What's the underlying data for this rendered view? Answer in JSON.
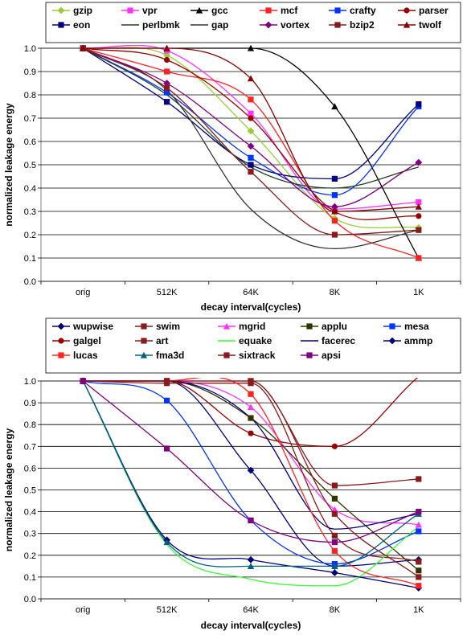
{
  "chart_data": [
    {
      "type": "line",
      "categories": [
        "orig",
        "512K",
        "64K",
        "8K",
        "1K"
      ],
      "xlabel": "decay interval(cycles)",
      "ylabel": "normalized leakage energy",
      "ylim": [
        0,
        1
      ],
      "yticks": [
        "0.0",
        "0.1",
        "0.2",
        "0.3",
        "0.4",
        "0.5",
        "0.6",
        "0.7",
        "0.8",
        "0.9",
        "1.0"
      ],
      "grid": "horizontal",
      "legend_position": "top",
      "series": [
        {
          "name": "gzip",
          "color": "#9ACD32",
          "marker": "diamond",
          "values": [
            1.0,
            0.97,
            0.645,
            0.27,
            0.23
          ]
        },
        {
          "name": "vpr",
          "color": "#FF33FF",
          "marker": "square",
          "values": [
            1.0,
            0.99,
            0.72,
            0.31,
            0.34
          ]
        },
        {
          "name": "gcc",
          "color": "#000000",
          "marker": "triangle",
          "values": [
            1.0,
            1.0,
            1.0,
            0.75,
            0.1
          ]
        },
        {
          "name": "mcf",
          "color": "#FF2222",
          "marker": "square",
          "values": [
            1.0,
            0.9,
            0.78,
            0.26,
            0.1
          ]
        },
        {
          "name": "crafty",
          "color": "#0033FF",
          "marker": "square",
          "values": [
            1.0,
            0.81,
            0.53,
            0.37,
            0.75
          ]
        },
        {
          "name": "parser",
          "color": "#990000",
          "marker": "circle",
          "values": [
            1.0,
            0.95,
            0.7,
            0.3,
            0.28
          ]
        },
        {
          "name": "eon",
          "color": "#000080",
          "marker": "square",
          "values": [
            1.0,
            0.77,
            0.5,
            0.44,
            0.76
          ]
        },
        {
          "name": "perlbmk",
          "color": "#204020",
          "marker": "none",
          "values": [
            1.0,
            0.8,
            0.49,
            0.4,
            0.49
          ]
        },
        {
          "name": "gap",
          "color": "#333333",
          "marker": "none",
          "values": [
            1.0,
            0.82,
            0.31,
            0.14,
            0.22
          ]
        },
        {
          "name": "vortex",
          "color": "#800080",
          "marker": "diamond",
          "values": [
            1.0,
            0.85,
            0.58,
            0.32,
            0.51
          ]
        },
        {
          "name": "bzip2",
          "color": "#8B1A1A",
          "marker": "square",
          "values": [
            1.0,
            0.83,
            0.47,
            0.2,
            0.22
          ]
        },
        {
          "name": "twolf",
          "color": "#8B0000",
          "marker": "triangle",
          "values": [
            1.0,
            1.0,
            0.87,
            0.3,
            0.32
          ]
        }
      ]
    },
    {
      "type": "line",
      "categories": [
        "orig",
        "512K",
        "64K",
        "8K",
        "1K"
      ],
      "xlabel": "decay interval(cycles)",
      "ylabel": "normalized leakage energy",
      "ylim": [
        0,
        1
      ],
      "yticks": [
        "0.0",
        "0.1",
        "0.2",
        "0.3",
        "0.4",
        "0.5",
        "0.6",
        "0.7",
        "0.8",
        "0.9",
        "1.0"
      ],
      "grid": "horizontal",
      "legend_position": "top",
      "series": [
        {
          "name": "wupwise",
          "color": "#000080",
          "marker": "diamond",
          "values": [
            1.0,
            1.0,
            0.59,
            0.15,
            0.18
          ]
        },
        {
          "name": "swim",
          "color": "#8B1A1A",
          "marker": "square",
          "values": [
            1.0,
            1.0,
            1.0,
            0.52,
            0.55
          ]
        },
        {
          "name": "mgrid",
          "color": "#FF33FF",
          "marker": "triangle",
          "values": [
            1.0,
            1.0,
            0.88,
            0.41,
            0.34
          ]
        },
        {
          "name": "applu",
          "color": "#333300",
          "marker": "square",
          "values": [
            1.0,
            1.0,
            0.83,
            0.46,
            0.13
          ]
        },
        {
          "name": "mesa",
          "color": "#0033FF",
          "marker": "square",
          "values": [
            1.0,
            0.91,
            0.36,
            0.16,
            0.31
          ]
        },
        {
          "name": "galgel",
          "color": "#990000",
          "marker": "circle",
          "values": [
            1.0,
            1.0,
            0.76,
            0.7,
            1.02
          ]
        },
        {
          "name": "art",
          "color": "#8B1A1A",
          "marker": "square",
          "values": [
            1.0,
            0.99,
            0.99,
            0.29,
            0.17
          ]
        },
        {
          "name": "equake",
          "color": "#33FF33",
          "marker": "none",
          "values": [
            1.0,
            0.25,
            0.09,
            0.06,
            0.33
          ]
        },
        {
          "name": "facerec",
          "color": "#000080",
          "marker": "none",
          "values": [
            1.0,
            1.0,
            0.83,
            0.32,
            0.39
          ]
        },
        {
          "name": "ammp",
          "color": "#000080",
          "marker": "diamond",
          "values": [
            1.0,
            0.27,
            0.18,
            0.12,
            0.05
          ]
        },
        {
          "name": "lucas",
          "color": "#FF2222",
          "marker": "square",
          "values": [
            1.0,
            1.0,
            0.94,
            0.22,
            0.06
          ]
        },
        {
          "name": "fma3d",
          "color": "#006080",
          "marker": "triangle",
          "values": [
            1.0,
            0.26,
            0.15,
            0.15,
            0.39
          ]
        },
        {
          "name": "sixtrack",
          "color": "#8B1A1A",
          "marker": "square",
          "values": [
            1.0,
            1.0,
            1.0,
            0.39,
            0.1
          ]
        },
        {
          "name": "apsi",
          "color": "#800080",
          "marker": "square",
          "values": [
            1.0,
            0.69,
            0.36,
            0.26,
            0.4
          ]
        }
      ]
    }
  ]
}
